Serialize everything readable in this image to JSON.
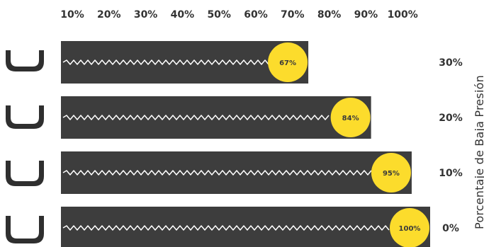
{
  "chart_data": {
    "type": "bar",
    "orientation": "horizontal",
    "x_ticks": [
      "10%",
      "20%",
      "30%",
      "40%",
      "50%",
      "60%",
      "70%",
      "80%",
      "90%",
      "100%"
    ],
    "xlim": [
      0,
      100
    ],
    "categories": [
      "30%",
      "20%",
      "10%",
      "0%"
    ],
    "values": [
      67,
      84,
      95,
      100
    ],
    "data_labels": [
      "67%",
      "84%",
      "95%",
      "100%"
    ],
    "ylabel": "Porcentaje de Baja Presión",
    "row_icon": "tire-cross-section-icon",
    "colors": {
      "bar": "#3d3d3d",
      "marker": "#fcdc2c",
      "zigzag": "#ffffff",
      "text": "#333333"
    }
  }
}
